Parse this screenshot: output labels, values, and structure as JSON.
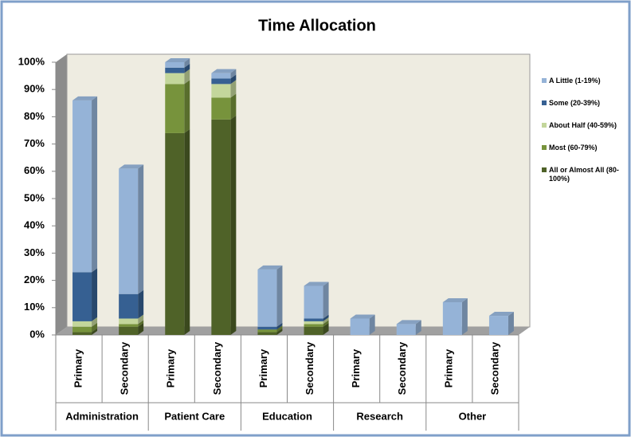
{
  "chart_data": {
    "type": "bar",
    "stacked": true,
    "title": "Time Allocation",
    "categories": [
      "Primary",
      "Secondary",
      "Primary",
      "Secondary",
      "Primary",
      "Secondary",
      "Primary",
      "Secondary",
      "Primary",
      "Secondary"
    ],
    "groups": [
      "Administration",
      "Patient Care",
      "Education",
      "Research",
      "Other"
    ],
    "series": [
      {
        "name": "All or Almost All (80-100%)",
        "color": "#4f6228",
        "values": [
          1,
          3,
          74,
          79,
          1,
          3,
          0,
          0,
          0,
          0
        ]
      },
      {
        "name": "Most (60-79%)",
        "color": "#77933c",
        "values": [
          2,
          1,
          18,
          8,
          1,
          1,
          0,
          0,
          0,
          0
        ]
      },
      {
        "name": "About Half (40-59%)",
        "color": "#c3d69b",
        "values": [
          2,
          2,
          4,
          5,
          0,
          1,
          0,
          0,
          0,
          0
        ]
      },
      {
        "name": "Some (20-39%)",
        "color": "#366092",
        "values": [
          18,
          9,
          2,
          2,
          1,
          1,
          0,
          0,
          0,
          0
        ]
      },
      {
        "name": "A Little (1-19%)",
        "color": "#95b3d7",
        "values": [
          63,
          46,
          2,
          2,
          21,
          12,
          6,
          4,
          12,
          7
        ]
      }
    ],
    "ylim": [
      0,
      100
    ],
    "yticks": [
      {
        "value": 0,
        "label": "0%"
      },
      {
        "value": 10,
        "label": "10%"
      },
      {
        "value": 20,
        "label": "20%"
      },
      {
        "value": 30,
        "label": "30%"
      },
      {
        "value": 40,
        "label": "40%"
      },
      {
        "value": 50,
        "label": "50%"
      },
      {
        "value": 60,
        "label": "60%"
      },
      {
        "value": 70,
        "label": "70%"
      },
      {
        "value": 80,
        "label": "80%"
      },
      {
        "value": 90,
        "label": "90%"
      },
      {
        "value": 100,
        "label": "100%"
      }
    ],
    "legend": "right"
  }
}
